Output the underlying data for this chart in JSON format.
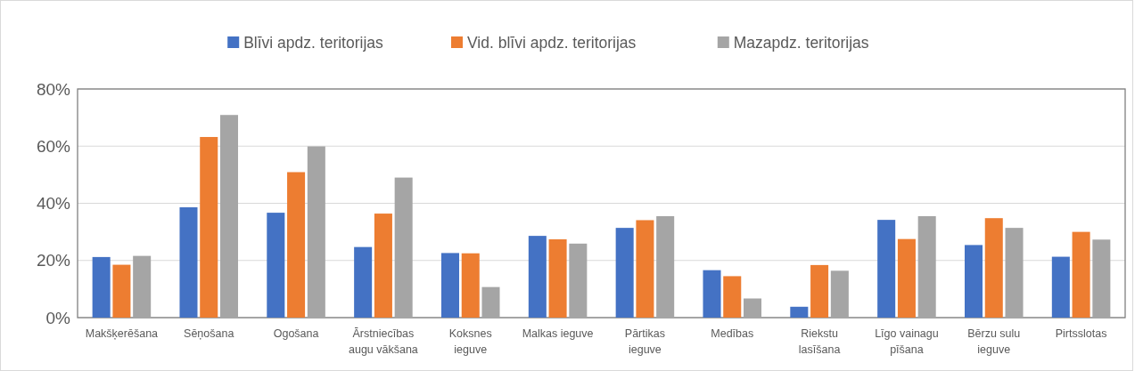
{
  "chart_data": {
    "type": "bar",
    "categories": [
      "Makšķerēšana",
      "Sēņošana",
      "Ogošana",
      "Ārstniecības\naugu vākšana",
      "Koksnes\nieguve",
      "Malkas ieguve",
      "Pārtikas\nieguve",
      "Medības",
      "Riekstu\nlasīšana",
      "Līgo vainagu\npīšana",
      "Bērzu sulu\nieguve",
      "Pirtsslotas"
    ],
    "series": [
      {
        "name": "Blīvi apdz. teritorijas",
        "color": "#4472c4",
        "values": [
          21.2,
          38.6,
          36.7,
          24.7,
          22.6,
          28.6,
          31.4,
          16.6,
          3.8,
          34.2,
          25.4,
          21.3
        ]
      },
      {
        "name": "Vid. blīvi apdz. teritorijas",
        "color": "#ed7d31",
        "values": [
          18.5,
          63.2,
          50.9,
          36.4,
          22.5,
          27.4,
          34.1,
          14.5,
          18.4,
          27.5,
          34.8,
          30.0
        ]
      },
      {
        "name": "Mazapdz. teritorijas",
        "color": "#a5a5a5",
        "values": [
          21.6,
          70.9,
          59.9,
          49.0,
          10.7,
          25.9,
          35.5,
          6.7,
          16.4,
          35.5,
          31.4,
          27.3
        ]
      }
    ],
    "ylim": [
      0,
      80
    ],
    "yticks": [
      {
        "value": 0,
        "label": "0%"
      },
      {
        "value": 20,
        "label": "20%"
      },
      {
        "value": 40,
        "label": "40%"
      },
      {
        "value": 60,
        "label": "60%"
      },
      {
        "value": 80,
        "label": "80%"
      }
    ],
    "grid": "y",
    "legend": "top"
  }
}
